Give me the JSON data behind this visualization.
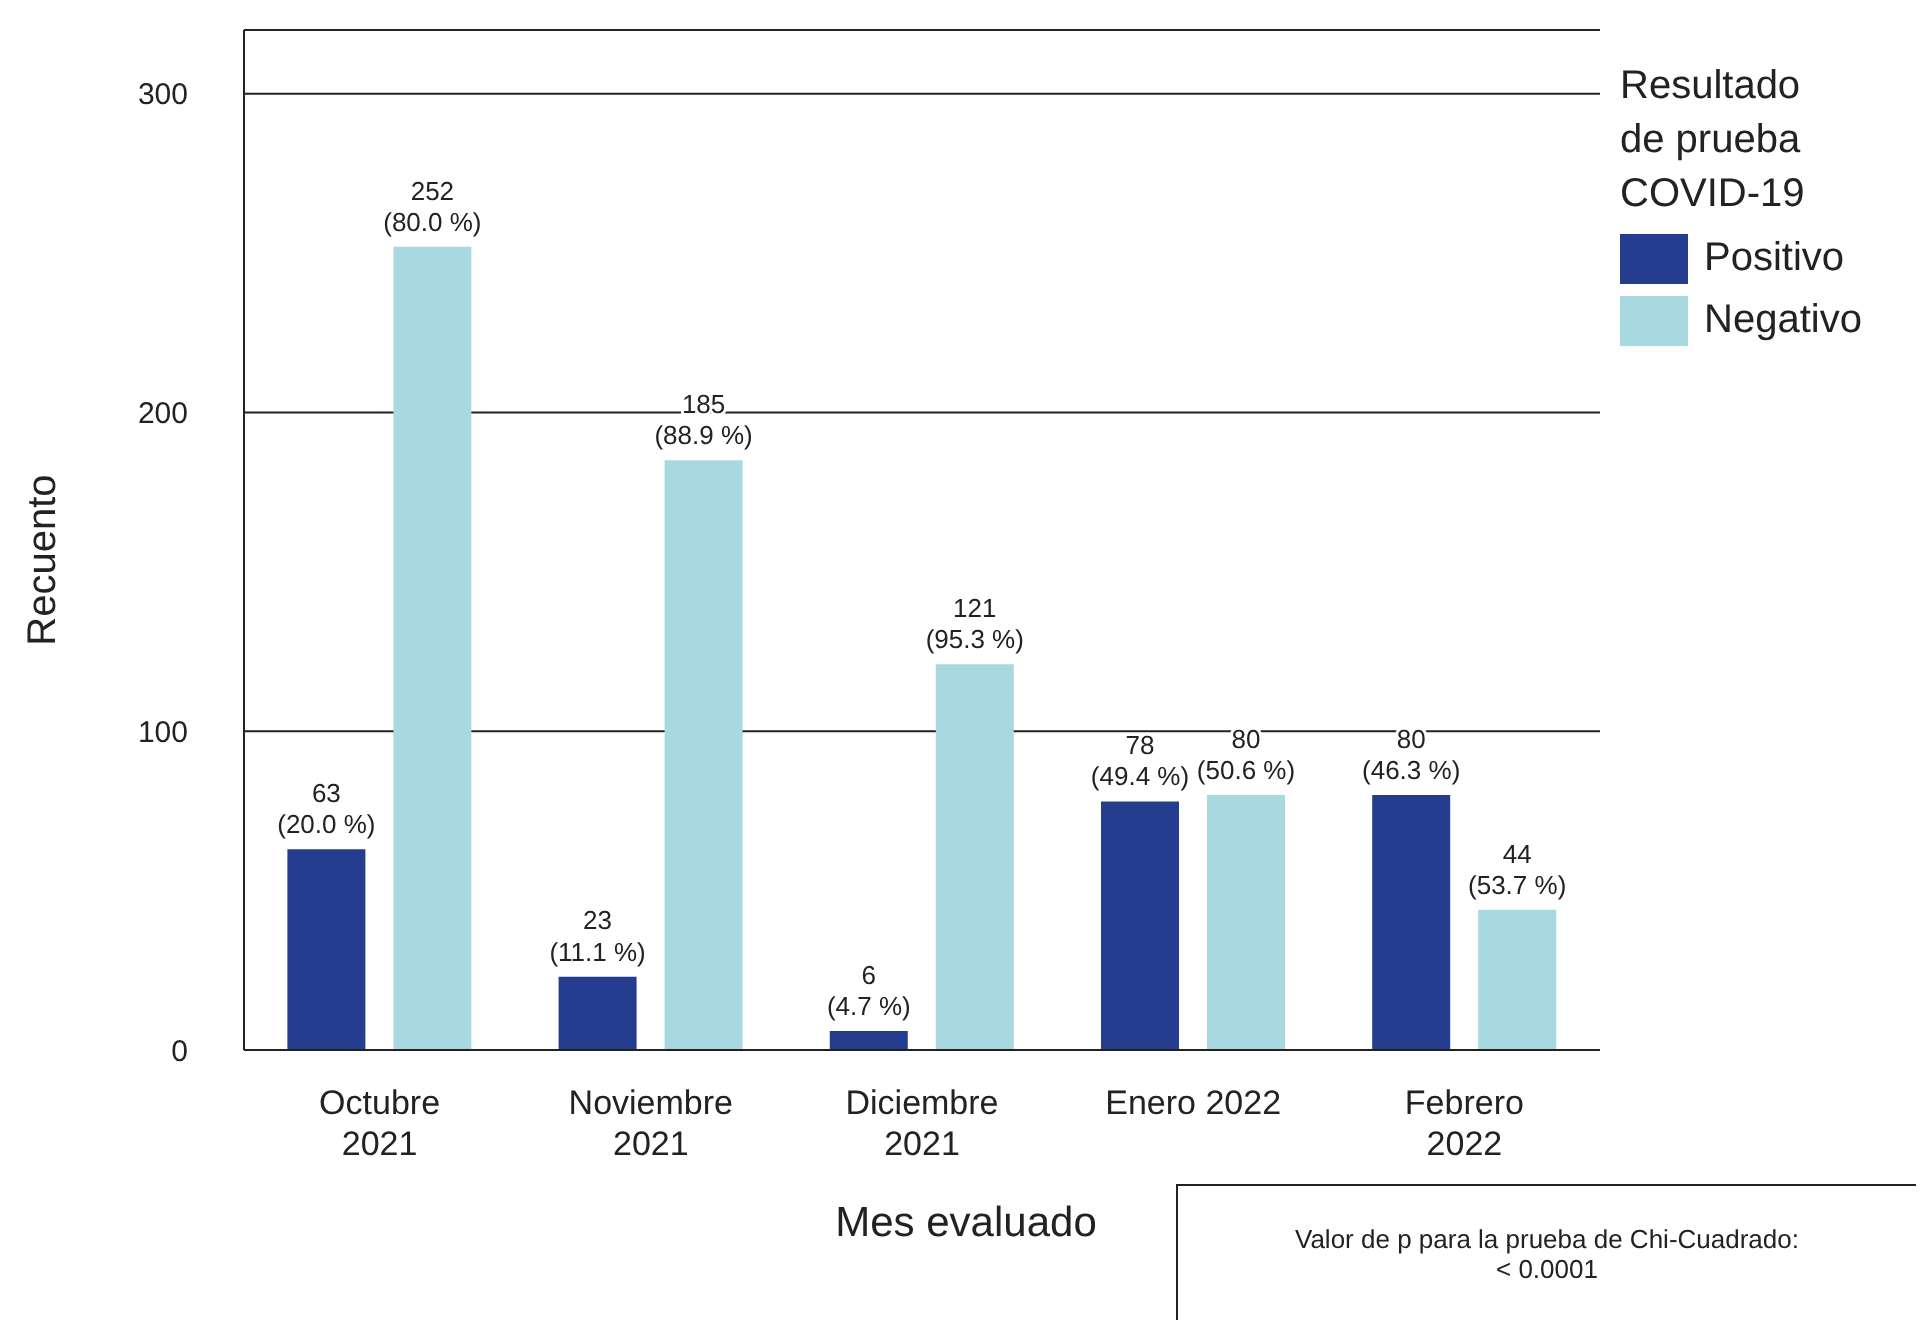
{
  "chart_data": {
    "type": "bar",
    "categories": [
      "Octubre\n2021",
      "Noviembre\n2021",
      "Diciembre\n2021",
      "Enero 2022",
      "Febrero\n2022"
    ],
    "series": [
      {
        "name": "Positivo",
        "color": "#253d8f",
        "values": [
          63,
          23,
          6,
          78,
          80
        ],
        "value_labels": [
          "63\n(20.0 %)",
          "23\n(11.1 %)",
          "6\n(4.7 %)",
          "78\n(49.4 %)",
          "80\n(46.3 %)"
        ]
      },
      {
        "name": "Negativo",
        "color": "#a8d8e0",
        "values": [
          252,
          185,
          121,
          80,
          44
        ],
        "value_labels": [
          "252\n(80.0 %)",
          "185\n(88.9 %)",
          "121\n(95.3 %)",
          "80\n(50.6 %)",
          "44\n(53.7 %)"
        ]
      }
    ],
    "xlabel": "Mes evaluado",
    "ylabel": "Recuento",
    "legend_title": "Resultado\nde prueba\nCOVID-19",
    "legend": "top right",
    "ylim": [
      0,
      320
    ],
    "yticks": [
      0,
      100,
      200,
      300
    ],
    "grid": "y",
    "annotations": [
      "Valor de p para la prueba de Chi-Cuadrado:\n< 0.0001"
    ]
  }
}
